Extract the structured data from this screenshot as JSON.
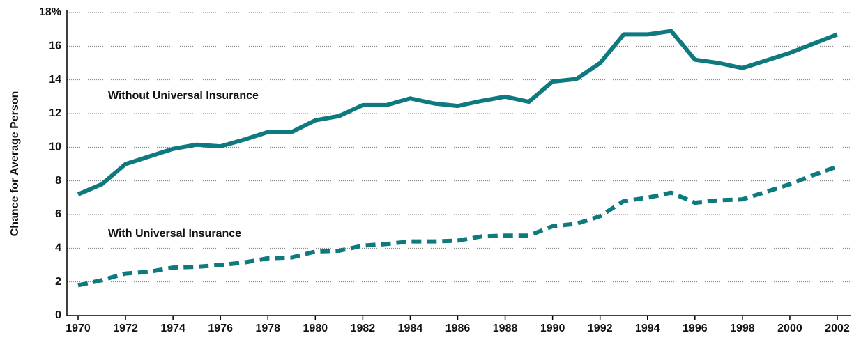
{
  "chart_data": {
    "type": "line",
    "ylabel": "Chance for Average Person",
    "x": [
      1970,
      1971,
      1972,
      1973,
      1974,
      1975,
      1976,
      1977,
      1978,
      1979,
      1980,
      1981,
      1982,
      1983,
      1984,
      1985,
      1986,
      1987,
      1988,
      1989,
      1990,
      1991,
      1992,
      1993,
      1994,
      1995,
      1996,
      1997,
      1998,
      1999,
      2000,
      2001,
      2002
    ],
    "series": [
      {
        "name": "Without Universal Insurance",
        "color": "#0e7a80",
        "style": "solid",
        "values": [
          7.2,
          7.8,
          9.0,
          9.45,
          9.9,
          10.15,
          10.05,
          10.45,
          10.9,
          10.9,
          11.6,
          11.85,
          12.5,
          12.5,
          12.9,
          12.6,
          12.45,
          12.75,
          13.0,
          12.7,
          13.9,
          14.05,
          15.0,
          16.7,
          16.7,
          16.9,
          15.2,
          15.0,
          14.7,
          15.15,
          15.6,
          16.15,
          16.7
        ]
      },
      {
        "name": "With Universal Insurance",
        "color": "#0e7a80",
        "style": "dashed",
        "values": [
          1.8,
          2.1,
          2.5,
          2.6,
          2.85,
          2.9,
          3.0,
          3.15,
          3.4,
          3.45,
          3.8,
          3.85,
          4.15,
          4.25,
          4.4,
          4.4,
          4.45,
          4.7,
          4.75,
          4.75,
          5.3,
          5.45,
          5.9,
          6.8,
          7.0,
          7.3,
          6.7,
          6.85,
          6.9,
          7.35,
          7.8,
          8.35,
          8.85
        ]
      }
    ],
    "xlim": [
      1970,
      2002
    ],
    "xticks": [
      1970,
      1972,
      1974,
      1976,
      1978,
      1980,
      1982,
      1984,
      1986,
      1988,
      1990,
      1992,
      1994,
      1996,
      1998,
      2000,
      2002
    ],
    "ylim": [
      0,
      18
    ],
    "yticks": [
      0,
      2,
      4,
      6,
      8,
      10,
      12,
      14,
      16,
      {
        "value": 18,
        "label": "18%"
      }
    ],
    "grid": true
  }
}
